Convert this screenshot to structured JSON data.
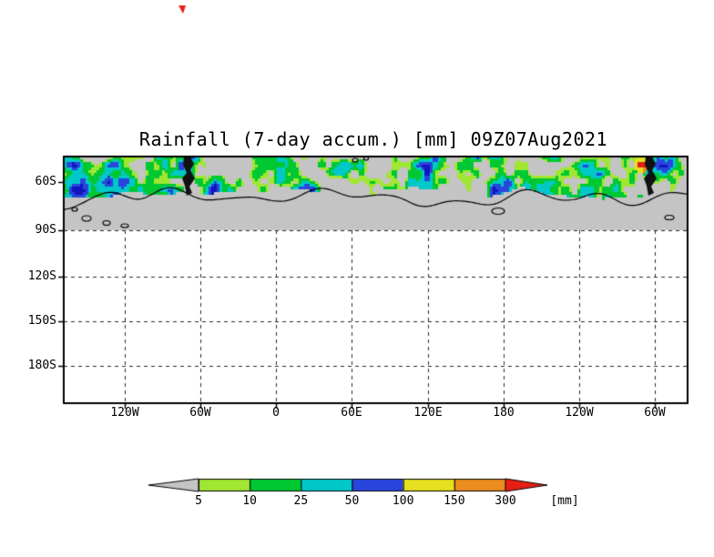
{
  "chart_data": {
    "type": "heatmap",
    "title": "Rainfall (7-day accum.) [mm] 09Z07Aug2021",
    "variable": "Rainfall (7-day accum.)",
    "valid_time": "09Z07Aug2021",
    "units": "[mm]",
    "x_tick_labels": [
      "120W",
      "60W",
      "0",
      "60E",
      "120E",
      "180",
      "120W",
      "60W"
    ],
    "y_tick_labels": [
      "60S",
      "90S",
      "120S",
      "150S",
      "180S"
    ],
    "grid": "dashed",
    "legend_position": "bottom",
    "colorbar": {
      "levels": [
        5,
        10,
        25,
        50,
        100,
        150,
        300
      ],
      "labels": [
        "5",
        "10",
        "25",
        "50",
        "100",
        "150",
        "300"
      ],
      "unit_label": "[mm]",
      "colors": [
        {
          "name": "below-5",
          "hex": "#c4c4c4"
        },
        {
          "name": "5-10",
          "hex": "#a0e632"
        },
        {
          "name": "10-25",
          "hex": "#00c832"
        },
        {
          "name": "25-50",
          "hex": "#00c8c8"
        },
        {
          "name": "50-100",
          "hex": "#2846dc"
        },
        {
          "name": "100-150",
          "hex": "#e6e11e"
        },
        {
          "name": "150-300",
          "hex": "#eb8c1e"
        },
        {
          "name": "above-300",
          "hex": "#e61e14"
        }
      ]
    },
    "map": {
      "background_color": "#ffffff",
      "no_data_mask_color": "#c4c4c4",
      "coastline_color": "#000000",
      "high_intensity_extra_color": "#1414be"
    }
  }
}
